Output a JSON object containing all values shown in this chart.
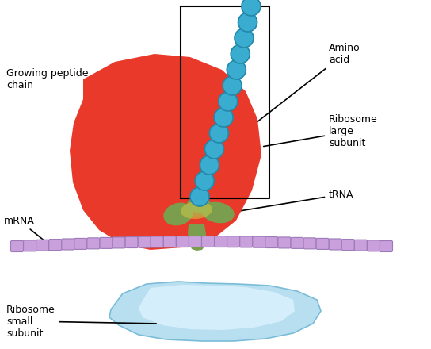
{
  "bg_color": "#ffffff",
  "large_subunit_color": "#e8392a",
  "small_subunit_color": "#b8dff0",
  "small_subunit_edge": "#7abcd8",
  "small_subunit_highlight": "#e0f4ff",
  "mrna_color": "#c9a0dc",
  "mrna_edge": "#9b7ab8",
  "trna_color": "#7a9e4e",
  "trna_light": "#9ab85e",
  "trna_highlight": "#d4c840",
  "amino_acid_color": "#3aaccf",
  "amino_acid_edge": "#2288aa",
  "label_color": "#000000",
  "labels": {
    "growing_peptide": "Growing peptide\nchain",
    "amino_acid": "Amino\nacid",
    "ribosome_large": "Ribosome\nlarge\nsubunit",
    "trna": "tRNA",
    "mrna": "mRNA",
    "ribosome_small": "Ribosome\nsmall\nsubunit"
  },
  "font_size": 9
}
